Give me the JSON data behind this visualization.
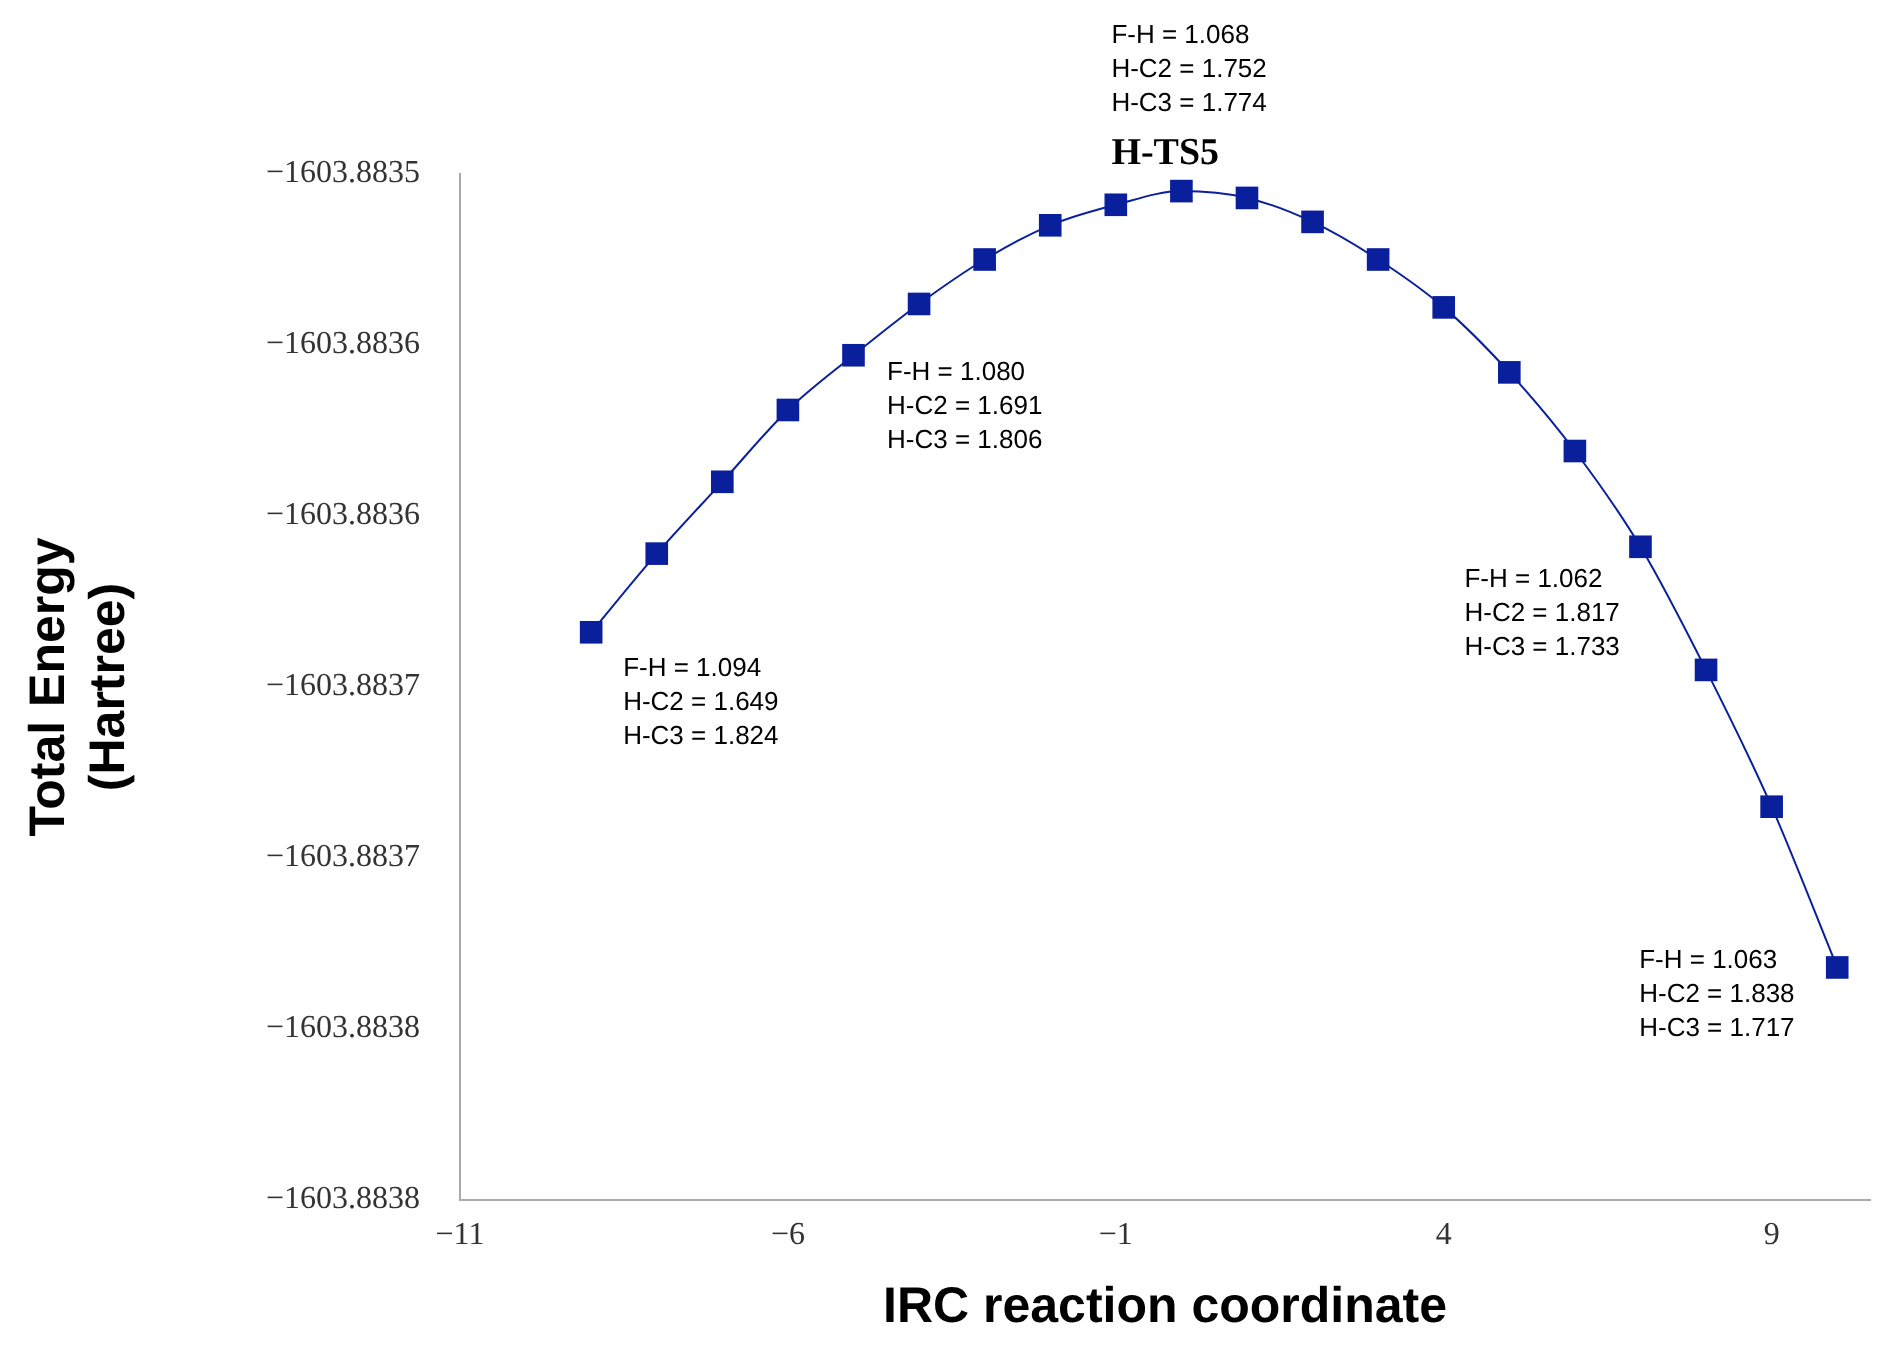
{
  "chart_data": {
    "type": "line",
    "xlabel": "IRC reaction coordinate",
    "ylabel": "Total Energy\n(Hartree)",
    "x": [
      -9,
      -8,
      -7,
      -6,
      -5,
      -4,
      -3,
      -2,
      -1,
      0,
      1,
      2,
      3,
      4,
      5,
      6,
      7,
      8,
      9,
      10
    ],
    "series": [
      {
        "color": "#0a1f9c",
        "values": [
          -1603.883634,
          -1603.883611,
          -1603.88359,
          -1603.883569,
          -1603.883553,
          -1603.883538,
          -1603.883525,
          -1603.883515,
          -1603.883509,
          -1603.883505,
          -1603.883507,
          -1603.883514,
          -1603.883525,
          -1603.883539,
          -1603.883558,
          -1603.883581,
          -1603.883609,
          -1603.883645,
          -1603.883685,
          -1603.883732
        ]
      }
    ],
    "xlim": [
      -11,
      10.5
    ],
    "xticks": [
      {
        "value": -11,
        "label": "−11"
      },
      {
        "value": -6,
        "label": "−6"
      },
      {
        "value": -1,
        "label": "−1"
      },
      4,
      9
    ],
    "ylim": [
      -1603.8838,
      -1603.8835
    ],
    "yticks": [
      {
        "value": -1603.8835,
        "label": "−1603.8835"
      },
      {
        "value": -1603.88355,
        "label": "−1603.8836"
      },
      {
        "value": -1603.8836,
        "label": "−1603.8836"
      },
      {
        "value": -1603.88365,
        "label": "−1603.8837"
      },
      {
        "value": -1603.8837,
        "label": "−1603.8837"
      },
      {
        "value": -1603.88375,
        "label": "−1603.8838"
      },
      {
        "value": -1603.8838,
        "label": "−1603.8838"
      }
    ],
    "grid": false,
    "legend": false,
    "marker": "square",
    "line_style": "solid",
    "annotations": [
      {
        "text": "F-H = 1.094\nH-C2 = 1.649\nH-C3 = 1.824",
        "x": -9,
        "y": -1603.883634
      },
      {
        "text": "F-H = 1.080\nH-C2 = 1.691\nH-C3 = 1.806",
        "x": -4,
        "y": -1603.883538
      },
      {
        "text": "F-H = 1.068\nH-C2 = 1.752\nH-C3 = 1.774",
        "x": 0,
        "y": -1603.883505
      },
      {
        "text": "H-TS5",
        "x": 0,
        "y": -1603.883505
      },
      {
        "text": "F-H = 1.062\nH-C2 = 1.817\nH-C3 = 1.733",
        "x": 7,
        "y": -1603.883609
      },
      {
        "text": "F-H = 1.063\nH-C2 = 1.838\nH-C3 = 1.717",
        "x": 10,
        "y": -1603.883732
      }
    ]
  }
}
